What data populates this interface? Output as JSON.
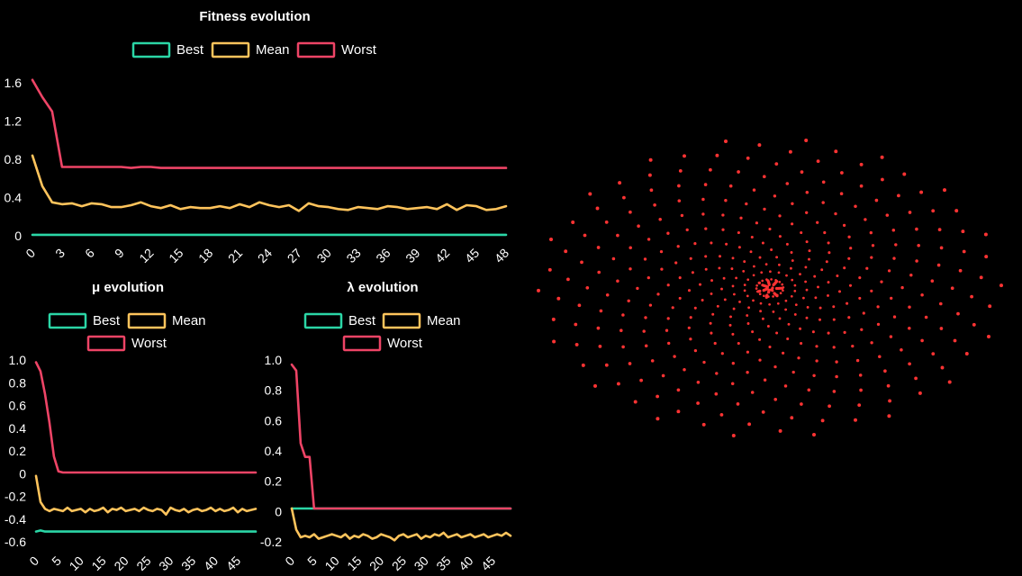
{
  "colors": {
    "best": "#2bd6a6",
    "mean": "#ffc45c",
    "worst": "#ee4466",
    "spiral": "#ff3333",
    "text": "#ffffff"
  },
  "spiral": {
    "arms": 18,
    "dots_per_arm": 22,
    "twist": 1.55
  },
  "chart_data": [
    {
      "id": "fitness",
      "type": "line",
      "title": "Fitness evolution",
      "xlabel": "",
      "ylabel": "",
      "x_ticks": [
        0,
        3,
        6,
        9,
        12,
        15,
        18,
        21,
        24,
        27,
        30,
        33,
        36,
        39,
        42,
        45,
        48
      ],
      "ylim": [
        0,
        1.6
      ],
      "y_ticks": [
        0,
        0.4,
        0.8,
        1.2,
        1.6
      ],
      "y_tick_labels": [
        "0",
        "0.4",
        "0.8",
        "1.2",
        "1.6"
      ],
      "legend": "top",
      "grid": false,
      "series": [
        {
          "name": "Best",
          "color_key": "best",
          "values": [
            0.01,
            0.01,
            0.01,
            0.01,
            0.01,
            0.01,
            0.01,
            0.01,
            0.01,
            0.01,
            0.01,
            0.01,
            0.01,
            0.01,
            0.01,
            0.01,
            0.01,
            0.01,
            0.01,
            0.01,
            0.01,
            0.01,
            0.01,
            0.01,
            0.01,
            0.01,
            0.01,
            0.01,
            0.01,
            0.01,
            0.01,
            0.01,
            0.01,
            0.01,
            0.01,
            0.01,
            0.01,
            0.01,
            0.01,
            0.01,
            0.01,
            0.01,
            0.01,
            0.01,
            0.01,
            0.01,
            0.01,
            0.01,
            0.01
          ]
        },
        {
          "name": "Mean",
          "color_key": "mean",
          "values": [
            0.84,
            0.52,
            0.35,
            0.33,
            0.34,
            0.31,
            0.34,
            0.33,
            0.3,
            0.3,
            0.32,
            0.35,
            0.31,
            0.29,
            0.32,
            0.28,
            0.3,
            0.29,
            0.29,
            0.31,
            0.29,
            0.33,
            0.3,
            0.35,
            0.32,
            0.3,
            0.32,
            0.26,
            0.34,
            0.31,
            0.3,
            0.28,
            0.27,
            0.3,
            0.29,
            0.28,
            0.31,
            0.3,
            0.28,
            0.29,
            0.3,
            0.28,
            0.33,
            0.27,
            0.32,
            0.31,
            0.27,
            0.28,
            0.31
          ]
        },
        {
          "name": "Worst",
          "color_key": "worst",
          "values": [
            1.63,
            1.45,
            1.3,
            0.72,
            0.72,
            0.72,
            0.72,
            0.72,
            0.72,
            0.72,
            0.71,
            0.72,
            0.72,
            0.71,
            0.71,
            0.71,
            0.71,
            0.71,
            0.71,
            0.71,
            0.71,
            0.71,
            0.71,
            0.71,
            0.71,
            0.71,
            0.71,
            0.71,
            0.71,
            0.71,
            0.71,
            0.71,
            0.71,
            0.71,
            0.71,
            0.71,
            0.71,
            0.71,
            0.71,
            0.71,
            0.71,
            0.71,
            0.71,
            0.71,
            0.71,
            0.71,
            0.71,
            0.71,
            0.71
          ]
        }
      ]
    },
    {
      "id": "mu",
      "type": "line",
      "title": "μ evolution",
      "xlabel": "",
      "ylabel": "",
      "x_ticks": [
        0,
        5,
        10,
        15,
        20,
        25,
        30,
        35,
        40,
        45
      ],
      "ylim": [
        -0.6,
        1.0
      ],
      "y_ticks": [
        -0.6,
        -0.4,
        -0.2,
        0,
        0.2,
        0.4,
        0.6,
        0.8,
        1.0
      ],
      "y_tick_labels": [
        "-0.6",
        "-0.4",
        "-0.2",
        "0",
        "0.2",
        "0.4",
        "0.6",
        "0.8",
        "1.0"
      ],
      "legend": "top",
      "grid": false,
      "series": [
        {
          "name": "Best",
          "color_key": "best",
          "values": [
            -0.51,
            -0.5,
            -0.51,
            -0.51,
            -0.51,
            -0.51,
            -0.51,
            -0.51,
            -0.51,
            -0.51,
            -0.51,
            -0.51,
            -0.51,
            -0.51,
            -0.51,
            -0.51,
            -0.51,
            -0.51,
            -0.51,
            -0.51,
            -0.51,
            -0.51,
            -0.51,
            -0.51,
            -0.51,
            -0.51,
            -0.51,
            -0.51,
            -0.51,
            -0.51,
            -0.51,
            -0.51,
            -0.51,
            -0.51,
            -0.51,
            -0.51,
            -0.51,
            -0.51,
            -0.51,
            -0.51,
            -0.51,
            -0.51,
            -0.51,
            -0.51,
            -0.51,
            -0.51,
            -0.51,
            -0.51,
            -0.51,
            -0.51
          ]
        },
        {
          "name": "Mean",
          "color_key": "mean",
          "values": [
            -0.02,
            -0.25,
            -0.31,
            -0.33,
            -0.31,
            -0.32,
            -0.33,
            -0.3,
            -0.33,
            -0.32,
            -0.31,
            -0.34,
            -0.31,
            -0.33,
            -0.32,
            -0.3,
            -0.34,
            -0.31,
            -0.32,
            -0.3,
            -0.33,
            -0.32,
            -0.31,
            -0.33,
            -0.3,
            -0.32,
            -0.33,
            -0.31,
            -0.32,
            -0.36,
            -0.3,
            -0.32,
            -0.33,
            -0.31,
            -0.34,
            -0.32,
            -0.31,
            -0.33,
            -0.32,
            -0.3,
            -0.33,
            -0.31,
            -0.33,
            -0.32,
            -0.3,
            -0.34,
            -0.31,
            -0.33,
            -0.32,
            -0.31
          ]
        },
        {
          "name": "Worst",
          "color_key": "worst",
          "values": [
            0.98,
            0.9,
            0.7,
            0.45,
            0.15,
            0.02,
            0.01,
            0.01,
            0.01,
            0.01,
            0.01,
            0.01,
            0.01,
            0.01,
            0.01,
            0.01,
            0.01,
            0.01,
            0.01,
            0.01,
            0.01,
            0.01,
            0.01,
            0.01,
            0.01,
            0.01,
            0.01,
            0.01,
            0.01,
            0.01,
            0.01,
            0.01,
            0.01,
            0.01,
            0.01,
            0.01,
            0.01,
            0.01,
            0.01,
            0.01,
            0.01,
            0.01,
            0.01,
            0.01,
            0.01,
            0.01,
            0.01,
            0.01,
            0.01,
            0.01
          ]
        }
      ]
    },
    {
      "id": "lambda",
      "type": "line",
      "title": "λ evolution",
      "xlabel": "",
      "ylabel": "",
      "x_ticks": [
        0,
        5,
        10,
        15,
        20,
        25,
        30,
        35,
        40,
        45
      ],
      "ylim": [
        -0.2,
        1.0
      ],
      "y_ticks": [
        -0.2,
        0,
        0.2,
        0.4,
        0.6,
        0.8,
        1.0
      ],
      "y_tick_labels": [
        "-0.2",
        "0",
        "0.2",
        "0.4",
        "0.6",
        "0.8",
        "1.0"
      ],
      "legend": "top",
      "grid": false,
      "series": [
        {
          "name": "Best",
          "color_key": "best",
          "values": [
            0.02,
            0.02,
            0.02,
            0.02,
            0.02,
            0.02,
            0.02,
            0.02,
            0.02,
            0.02,
            0.02,
            0.02,
            0.02,
            0.02,
            0.02,
            0.02,
            0.02,
            0.02,
            0.02,
            0.02,
            0.02,
            0.02,
            0.02,
            0.02,
            0.02,
            0.02,
            0.02,
            0.02,
            0.02,
            0.02,
            0.02,
            0.02,
            0.02,
            0.02,
            0.02,
            0.02,
            0.02,
            0.02,
            0.02,
            0.02,
            0.02,
            0.02,
            0.02,
            0.02,
            0.02,
            0.02,
            0.02,
            0.02,
            0.02,
            0.02
          ]
        },
        {
          "name": "Mean",
          "color_key": "mean",
          "values": [
            0.02,
            -0.12,
            -0.17,
            -0.16,
            -0.17,
            -0.15,
            -0.18,
            -0.17,
            -0.16,
            -0.15,
            -0.16,
            -0.17,
            -0.15,
            -0.18,
            -0.16,
            -0.17,
            -0.15,
            -0.16,
            -0.18,
            -0.17,
            -0.15,
            -0.16,
            -0.17,
            -0.19,
            -0.16,
            -0.15,
            -0.17,
            -0.16,
            -0.15,
            -0.18,
            -0.16,
            -0.17,
            -0.15,
            -0.16,
            -0.14,
            -0.17,
            -0.16,
            -0.15,
            -0.17,
            -0.16,
            -0.15,
            -0.17,
            -0.16,
            -0.15,
            -0.17,
            -0.16,
            -0.15,
            -0.16,
            -0.14,
            -0.16
          ]
        },
        {
          "name": "Worst",
          "color_key": "worst",
          "values": [
            0.97,
            0.93,
            0.45,
            0.36,
            0.36,
            0.02,
            0.02,
            0.02,
            0.02,
            0.02,
            0.02,
            0.02,
            0.02,
            0.02,
            0.02,
            0.02,
            0.02,
            0.02,
            0.02,
            0.02,
            0.02,
            0.02,
            0.02,
            0.02,
            0.02,
            0.02,
            0.02,
            0.02,
            0.02,
            0.02,
            0.02,
            0.02,
            0.02,
            0.02,
            0.02,
            0.02,
            0.02,
            0.02,
            0.02,
            0.02,
            0.02,
            0.02,
            0.02,
            0.02,
            0.02,
            0.02,
            0.02,
            0.02,
            0.02,
            0.02
          ]
        }
      ]
    }
  ]
}
